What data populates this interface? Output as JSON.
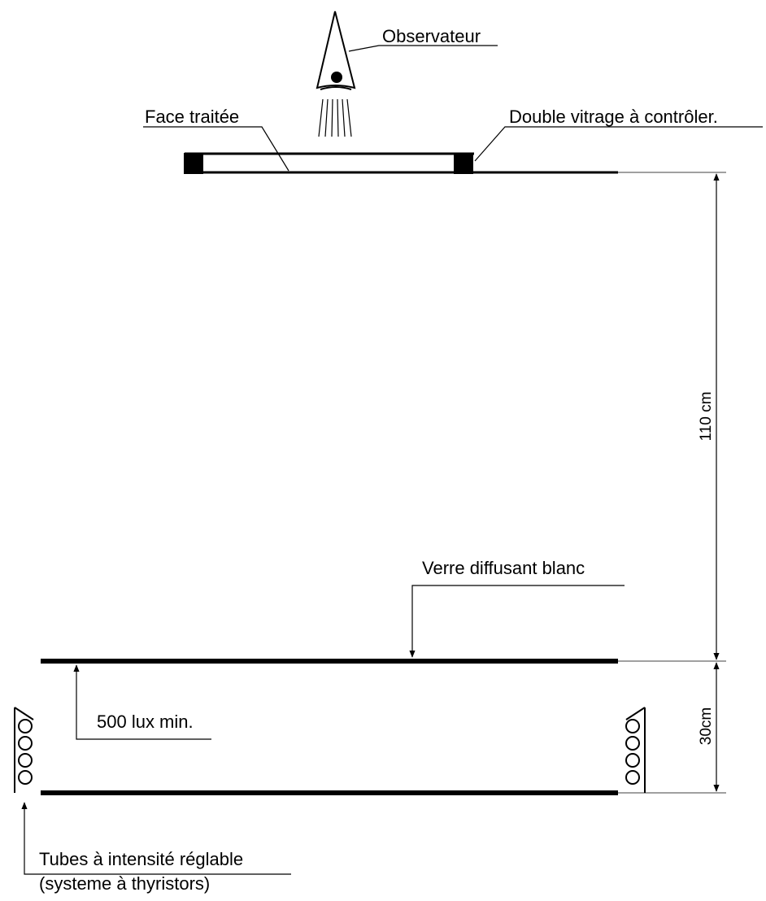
{
  "labels": {
    "observer": "Observateur",
    "treated_face": "Face traitée",
    "double_glazing": "Double vitrage à contrôler.",
    "diffusing_glass": "Verre diffusant blanc",
    "lux": "500 lux min.",
    "tubes_line1": "Tubes à intensité réglable",
    "tubes_line2": "(systeme à thyristors)"
  },
  "dimensions": {
    "upper_gap": "110 cm",
    "lower_gap": "30cm"
  },
  "colors": {
    "ink": "#000000",
    "background": "#ffffff"
  }
}
